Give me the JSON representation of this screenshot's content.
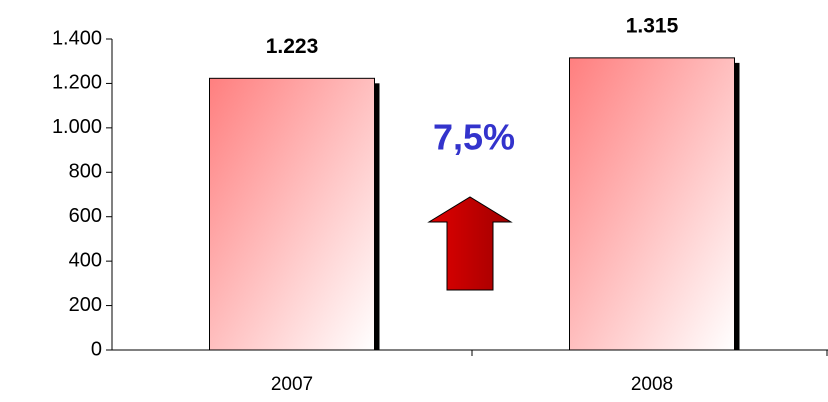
{
  "chart_data": {
    "type": "bar",
    "categories": [
      "2007",
      "2008"
    ],
    "values": [
      1223,
      1315
    ],
    "value_labels": [
      "1.223",
      "1.315"
    ],
    "ylim": [
      0,
      1400
    ],
    "yticks": [
      0,
      200,
      400,
      600,
      800,
      {
        "value": 1000,
        "label": "1.000"
      },
      {
        "value": 1200,
        "label": "1.200"
      },
      {
        "value": 1400,
        "label": "1.400"
      }
    ],
    "annotation": "7,5%",
    "grid": false
  }
}
